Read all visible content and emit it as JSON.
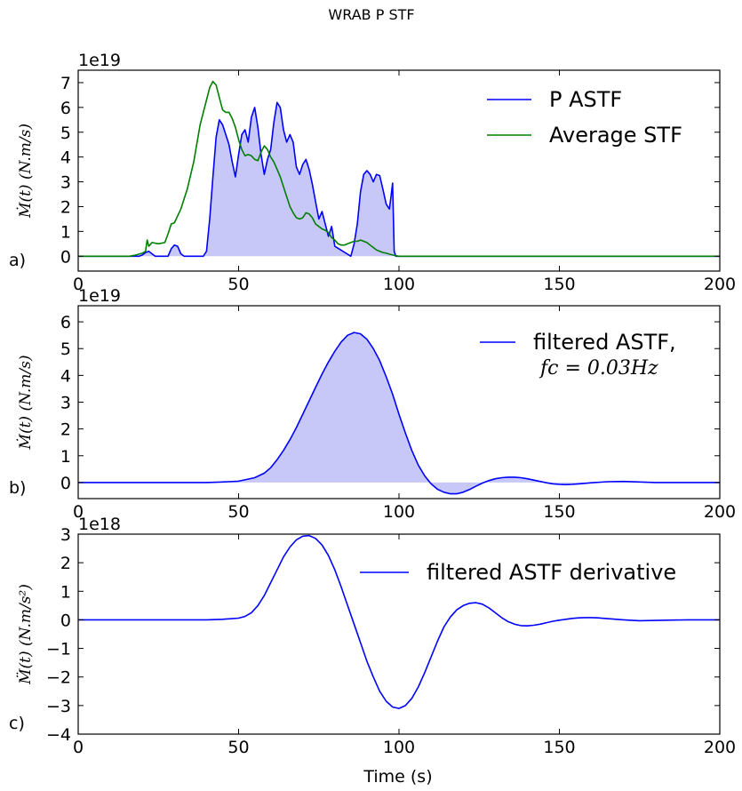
{
  "figure": {
    "title": "WRAB P STF",
    "xlabel": "Time (s)"
  },
  "colors": {
    "blue": "#0000ff",
    "green": "#007f00",
    "fill": "#c8c8f8"
  },
  "chart_data": [
    {
      "type": "line",
      "panel_label": "a)",
      "offset_text": "1e19",
      "ylabel": "Ṁ(t) (N.m/s)",
      "xlim": [
        0,
        200
      ],
      "ylim": [
        -0.6,
        7.5
      ],
      "xticks": [
        0,
        50,
        100,
        150,
        200
      ],
      "yticks": [
        0,
        1,
        2,
        3,
        4,
        5,
        6,
        7
      ],
      "legend_position": "top-right",
      "series": [
        {
          "name": "P ASTF",
          "color": "#0000ff",
          "filled": true,
          "x": [
            0,
            19,
            20,
            21,
            22,
            23,
            24,
            28,
            29,
            30,
            31,
            32,
            33,
            39,
            40,
            41,
            42,
            43,
            44,
            45,
            46,
            47,
            48,
            49,
            50,
            51,
            52,
            53,
            54,
            55,
            56,
            57,
            58,
            59,
            60,
            61,
            62,
            63,
            64,
            65,
            66,
            67,
            68,
            69,
            70,
            71,
            72,
            73,
            74,
            75,
            76,
            77,
            78,
            79,
            80,
            85,
            86,
            87,
            88,
            89,
            90,
            91,
            92,
            93,
            94,
            95,
            96,
            97,
            97.5,
            98,
            98.5,
            99,
            200
          ],
          "y": [
            0,
            0,
            0.05,
            0.15,
            0.2,
            0.1,
            0,
            0,
            0.3,
            0.45,
            0.4,
            0.1,
            0,
            0,
            0.2,
            1.5,
            3.2,
            4.8,
            5.5,
            5.3,
            4.9,
            4.5,
            3.8,
            3.2,
            4.1,
            4.9,
            5.1,
            4.6,
            5.6,
            6.0,
            5.2,
            4.1,
            3.3,
            3.9,
            4.3,
            5.4,
            6.2,
            6.0,
            5.1,
            4.6,
            4.9,
            4.6,
            3.6,
            3.3,
            3.7,
            3.9,
            3.5,
            2.9,
            2.2,
            1.5,
            1.8,
            1.3,
            0.8,
            1.2,
            0.4,
            0,
            0.5,
            1.3,
            2.6,
            3.3,
            3.45,
            3.3,
            3.0,
            3.3,
            3.25,
            2.7,
            2.1,
            1.9,
            2.4,
            2.95,
            0.2,
            0,
            0
          ]
        },
        {
          "name": "Average STF",
          "color": "#007f00",
          "filled": false,
          "x": [
            0,
            16,
            18,
            20,
            21,
            21.5,
            22,
            23,
            25,
            27,
            28,
            29,
            30,
            32,
            34,
            36,
            38,
            40,
            41,
            42,
            43,
            44,
            45,
            46,
            47,
            48,
            49,
            50,
            51,
            52,
            53,
            54,
            55,
            56,
            57,
            58,
            59,
            60,
            61,
            62,
            63,
            64,
            65,
            66,
            67,
            68,
            69,
            70,
            71,
            72,
            73,
            74,
            75,
            76,
            77,
            78,
            79,
            80,
            81,
            82,
            83,
            84,
            85,
            86,
            87,
            88,
            89,
            90,
            91,
            92,
            93,
            94,
            95,
            96,
            97,
            98,
            99,
            100,
            200
          ],
          "y": [
            0,
            0,
            0.05,
            0.12,
            0.2,
            0.65,
            0.4,
            0.55,
            0.5,
            0.55,
            0.9,
            1.3,
            1.35,
            1.9,
            2.7,
            3.8,
            5.3,
            6.3,
            6.8,
            7.05,
            6.9,
            6.4,
            5.9,
            5.8,
            5.8,
            5.55,
            5.2,
            4.7,
            4.3,
            4.05,
            4.1,
            4.05,
            3.9,
            3.85,
            4.2,
            4.45,
            4.3,
            4.0,
            3.8,
            3.5,
            3.2,
            2.8,
            2.4,
            2.0,
            1.75,
            1.55,
            1.5,
            1.55,
            1.75,
            1.7,
            1.55,
            1.3,
            1.2,
            1.1,
            1.05,
            0.95,
            0.75,
            0.65,
            0.5,
            0.45,
            0.45,
            0.5,
            0.55,
            0.6,
            0.6,
            0.65,
            0.6,
            0.55,
            0.45,
            0.35,
            0.25,
            0.2,
            0.15,
            0.12,
            0.08,
            0.05,
            0.02,
            0,
            0
          ]
        }
      ]
    },
    {
      "type": "line",
      "panel_label": "b)",
      "offset_text": "1e19",
      "ylabel": "Ṁ(t) (N.m/s)",
      "xlim": [
        0,
        200
      ],
      "ylim": [
        -0.6,
        6.6
      ],
      "xticks": [
        0,
        50,
        100,
        150,
        200
      ],
      "yticks": [
        0,
        1,
        2,
        3,
        4,
        5,
        6
      ],
      "legend_position": "top-right",
      "series": [
        {
          "name": "filtered ASTF,",
          "name_line2": "fc = 0.03Hz",
          "color": "#0000ff",
          "filled": true,
          "x": [
            0,
            20,
            30,
            40,
            45,
            50,
            55,
            58,
            60,
            62,
            64,
            66,
            68,
            70,
            72,
            74,
            76,
            78,
            80,
            82,
            84,
            86,
            88,
            90,
            92,
            94,
            96,
            98,
            100,
            102,
            104,
            106,
            108,
            110,
            112,
            114,
            116,
            118,
            120,
            122,
            124,
            126,
            128,
            130,
            132,
            134,
            136,
            138,
            140,
            142,
            144,
            146,
            148,
            150,
            152,
            154,
            156,
            158,
            160,
            165,
            170,
            175,
            180,
            190,
            200
          ],
          "y": [
            0,
            0,
            0,
            0.0,
            0.02,
            0.05,
            0.18,
            0.35,
            0.55,
            0.85,
            1.2,
            1.6,
            2.05,
            2.55,
            3.05,
            3.55,
            4.05,
            4.5,
            4.9,
            5.25,
            5.5,
            5.6,
            5.55,
            5.35,
            5.0,
            4.55,
            3.95,
            3.3,
            2.55,
            1.85,
            1.2,
            0.65,
            0.25,
            -0.05,
            -0.25,
            -0.36,
            -0.42,
            -0.42,
            -0.36,
            -0.26,
            -0.14,
            -0.02,
            0.07,
            0.14,
            0.18,
            0.2,
            0.2,
            0.18,
            0.14,
            0.09,
            0.04,
            -0.01,
            -0.05,
            -0.07,
            -0.08,
            -0.07,
            -0.05,
            -0.03,
            -0.01,
            0.03,
            0.04,
            0.02,
            0,
            0,
            0
          ]
        }
      ]
    },
    {
      "type": "line",
      "panel_label": "c)",
      "offset_text": "1e18",
      "ylabel": "M̈(t) (N.m/s²)",
      "xlim": [
        0,
        200
      ],
      "ylim": [
        -4,
        3
      ],
      "xticks": [
        0,
        50,
        100,
        150,
        200
      ],
      "yticks": [
        -4,
        -3,
        -2,
        -1,
        0,
        1,
        2,
        3
      ],
      "legend_position": "top-right",
      "series": [
        {
          "name": "filtered ASTF derivative",
          "color": "#0000ff",
          "filled": false,
          "x": [
            0,
            30,
            40,
            45,
            50,
            52,
            54,
            56,
            58,
            60,
            62,
            64,
            66,
            68,
            70,
            72,
            74,
            76,
            78,
            80,
            82,
            84,
            86,
            88,
            90,
            92,
            94,
            96,
            98,
            100,
            102,
            104,
            106,
            108,
            110,
            112,
            114,
            116,
            118,
            120,
            122,
            124,
            126,
            128,
            130,
            132,
            134,
            136,
            138,
            140,
            142,
            144,
            146,
            148,
            150,
            152,
            154,
            156,
            158,
            160,
            162,
            165,
            170,
            175,
            180,
            190,
            200
          ],
          "y": [
            0,
            0,
            0,
            0.02,
            0.06,
            0.12,
            0.25,
            0.5,
            0.85,
            1.3,
            1.75,
            2.2,
            2.55,
            2.8,
            2.93,
            2.95,
            2.85,
            2.62,
            2.25,
            1.75,
            1.15,
            0.5,
            -0.15,
            -0.8,
            -1.45,
            -2.0,
            -2.5,
            -2.85,
            -3.05,
            -3.1,
            -3.0,
            -2.75,
            -2.35,
            -1.85,
            -1.3,
            -0.75,
            -0.25,
            0.1,
            0.35,
            0.5,
            0.58,
            0.6,
            0.55,
            0.42,
            0.25,
            0.08,
            -0.06,
            -0.15,
            -0.2,
            -0.21,
            -0.19,
            -0.15,
            -0.1,
            -0.05,
            -0.01,
            0.02,
            0.05,
            0.07,
            0.08,
            0.08,
            0.07,
            0.04,
            0.0,
            -0.03,
            -0.02,
            0,
            0
          ]
        }
      ]
    }
  ]
}
